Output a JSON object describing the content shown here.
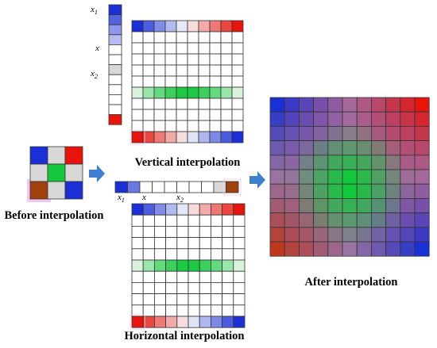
{
  "captions": {
    "before": "Before interpolation",
    "vertical": "Vertical interpolation",
    "horizontal": "Horizontal interpolation",
    "after": "After interpolation"
  },
  "labels": {
    "x1": "x",
    "x1_sub": "1",
    "x": "x",
    "x2": "x",
    "x2_sub": "2"
  },
  "colors": {
    "blue": "#1a2fd6",
    "red": "#e8140c",
    "green": "#14c83c",
    "grey": "#d8d8d8",
    "white": "#ffffff",
    "arrow": "#3f7fd0",
    "grid_line": "#333333",
    "highlight_pink": "#f5c6ec"
  },
  "source_grid": [
    [
      "#1a2fd6",
      "#d8d8d8",
      "#e8140c"
    ],
    [
      "#d8d8d8",
      "#14c83c",
      "#d8d8d8"
    ],
    [
      "#a0400c",
      "#d8d8d8",
      "#1a2fd6"
    ]
  ]
}
